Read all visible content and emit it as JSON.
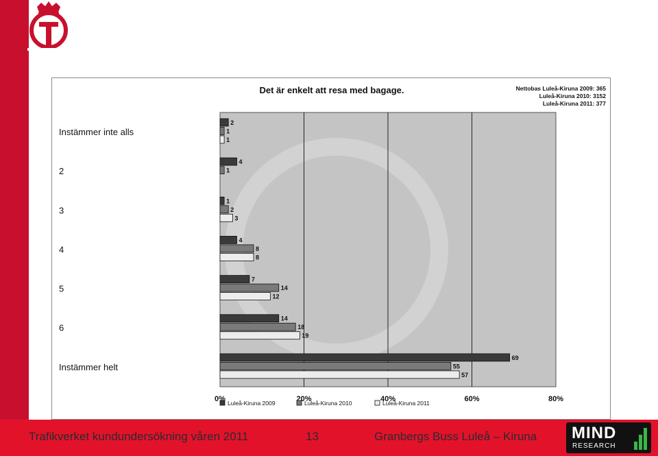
{
  "footer": {
    "left": "Trafikverket kundundersökning våren 2011",
    "page": "13",
    "right": "Granbergs Buss Luleå – Kiruna"
  },
  "brand": {
    "mind_text": "MIND",
    "research_text": "RESEARCH",
    "accent": "#c8102e"
  },
  "chart_data": {
    "type": "bar",
    "orientation": "horizontal",
    "title": "Det är enkelt att resa med bagage.",
    "base_notes": [
      "Nettobas  Luleå-Kiruna 2009: 365",
      "Luleå-Kiruna 2010: 3152",
      "Luleå-Kiruna 2011: 377"
    ],
    "categories": [
      "Instämmer inte alls",
      "2",
      "3",
      "4",
      "5",
      "6",
      "Instämmer helt"
    ],
    "series": [
      {
        "name": "Luleå-Kiruna 2009",
        "values": [
          2,
          4,
          1,
          4,
          7,
          14,
          69
        ],
        "color": "#3a3a3a"
      },
      {
        "name": "Luleå-Kiruna 2010",
        "values": [
          1,
          1,
          2,
          8,
          14,
          18,
          55
        ],
        "color": "#7a7a7a"
      },
      {
        "name": "Luleå-Kiruna 2011",
        "values": [
          1,
          null,
          3,
          8,
          12,
          19,
          57
        ],
        "color": "#ececec"
      }
    ],
    "xticks": [
      "0%",
      "20%",
      "40%",
      "60%",
      "80%"
    ],
    "xlim": [
      0,
      80
    ],
    "grid": true,
    "legend_position": "bottom"
  }
}
